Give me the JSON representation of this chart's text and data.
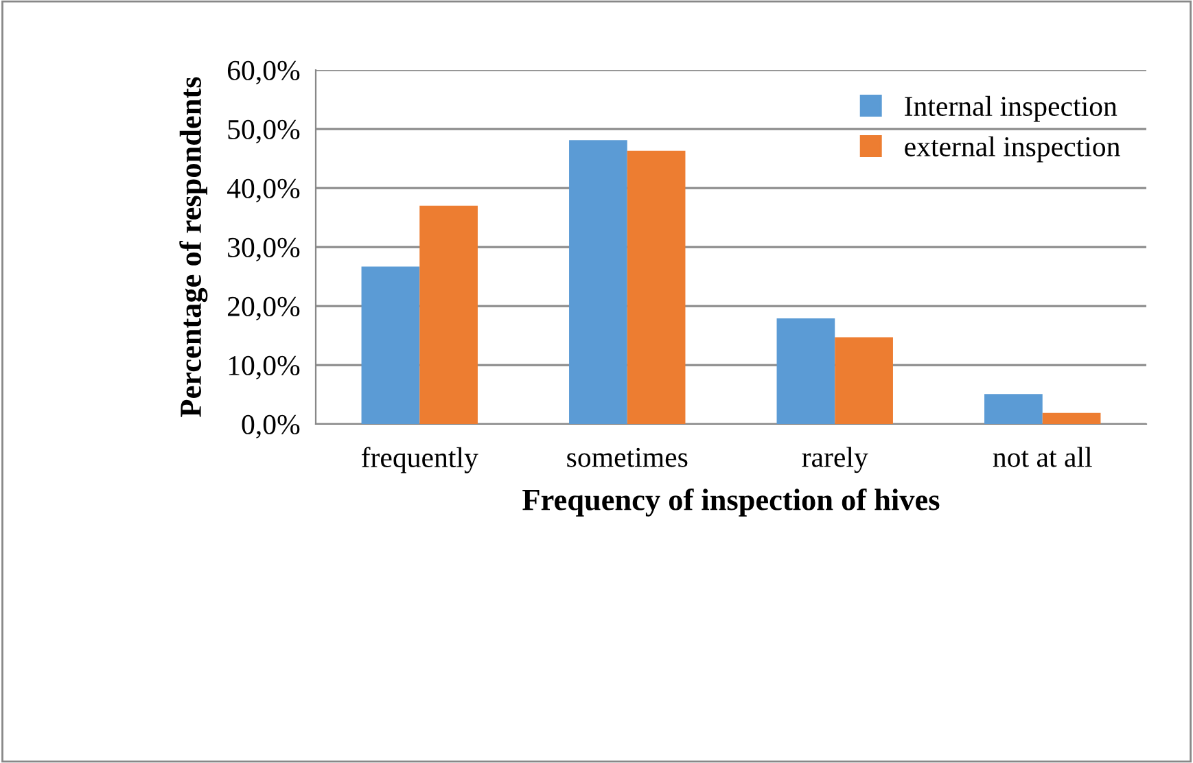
{
  "chart_data": {
    "type": "bar",
    "xlabel": "Frequency of inspection of hives",
    "ylabel": "Percentage of respondents",
    "categories": [
      "frequently",
      "sometimes",
      "rarely",
      "not at all"
    ],
    "series": [
      {
        "name": "Internal inspection",
        "color": "#5b9bd5",
        "values": [
          26.7,
          48.1,
          17.9,
          5.1
        ]
      },
      {
        "name": "external inspection",
        "color": "#ed7d31",
        "values": [
          37.0,
          46.3,
          14.7,
          1.9
        ]
      }
    ],
    "ylim": [
      0,
      60
    ],
    "yticks": [
      {
        "value": 0,
        "label": "0,0%"
      },
      {
        "value": 10,
        "label": "10,0%"
      },
      {
        "value": 20,
        "label": "20,0%"
      },
      {
        "value": 30,
        "label": "30,0%"
      },
      {
        "value": 40,
        "label": "40,0%"
      },
      {
        "value": 50,
        "label": "50,0%"
      },
      {
        "value": 60,
        "label": "60,0%"
      }
    ],
    "grid": "y",
    "legend": "top right"
  }
}
